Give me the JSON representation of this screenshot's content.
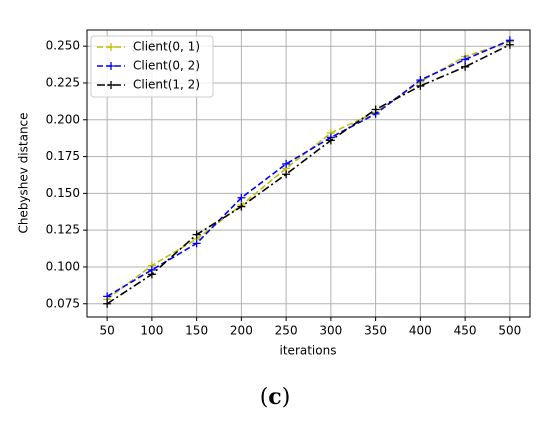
{
  "chart_data": {
    "type": "line",
    "x": [
      50,
      100,
      150,
      200,
      250,
      300,
      350,
      400,
      450,
      500
    ],
    "series": [
      {
        "name": "Client(0, 1)",
        "color": "#bfbf00",
        "dash": "dashed",
        "values": [
          0.078,
          0.101,
          0.119,
          0.142,
          0.167,
          0.191,
          0.205,
          0.226,
          0.243,
          0.253
        ]
      },
      {
        "name": "Client(0, 2)",
        "color": "#0000ff",
        "dash": "dashed",
        "values": [
          0.08,
          0.098,
          0.116,
          0.147,
          0.17,
          0.188,
          0.204,
          0.227,
          0.241,
          0.254
        ]
      },
      {
        "name": "Client(1, 2)",
        "color": "#000000",
        "dash": "dashdot",
        "values": [
          0.075,
          0.095,
          0.122,
          0.141,
          0.163,
          0.186,
          0.207,
          0.223,
          0.236,
          0.251
        ]
      }
    ],
    "xlabel": "iterations",
    "ylabel": "Chebyshev distance",
    "xlim": [
      27.5,
      522.5
    ],
    "xticks": [
      50,
      100,
      150,
      200,
      250,
      300,
      350,
      400,
      450,
      500
    ],
    "ylim": [
      0.066,
      0.261
    ],
    "yticks": [
      {
        "value": 0.075,
        "label": "0.075"
      },
      {
        "value": 0.1,
        "label": "0.100"
      },
      {
        "value": 0.125,
        "label": "0.125"
      },
      {
        "value": 0.15,
        "label": "0.150"
      },
      {
        "value": 0.175,
        "label": "0.175"
      },
      {
        "value": 0.2,
        "label": "0.200"
      },
      {
        "value": 0.225,
        "label": "0.225"
      },
      {
        "value": 0.25,
        "label": "0.250"
      }
    ],
    "grid": true,
    "legend": "upper left"
  },
  "caption": {
    "open": "(",
    "letter": "c",
    "close": ")"
  }
}
